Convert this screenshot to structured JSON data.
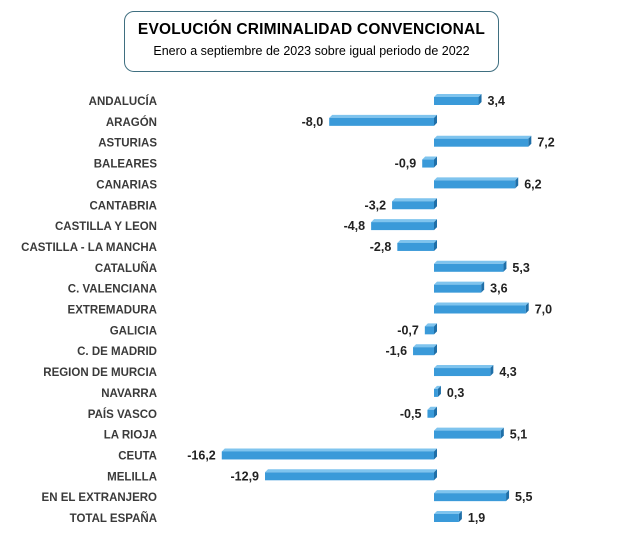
{
  "chart_data": {
    "type": "bar",
    "orientation": "horizontal",
    "title": "EVOLUCIÓN CRIMINALIDAD CONVENCIONAL",
    "subtitle": "Enero a septiembre de 2023 sobre igual periodo de 2022",
    "categories": [
      "ANDALUCÍA",
      "ARAGÓN",
      "ASTURIAS",
      "BALEARES",
      "CANARIAS",
      "CANTABRIA",
      "CASTILLA Y LEON",
      "CASTILLA - LA MANCHA",
      "CATALUÑA",
      "C. VALENCIANA",
      "EXTREMADURA",
      "GALICIA",
      "C. DE MADRID",
      "REGION DE MURCIA",
      "NAVARRA",
      "PAÍS VASCO",
      "LA RIOJA",
      "CEUTA",
      "MELILLA",
      "EN EL EXTRANJERO",
      "TOTAL ESPAÑA"
    ],
    "values": [
      3.4,
      -8.0,
      7.2,
      -0.9,
      6.2,
      -3.2,
      -4.8,
      -2.8,
      5.3,
      3.6,
      7.0,
      -0.7,
      -1.6,
      4.3,
      0.3,
      -0.5,
      5.1,
      -16.2,
      -12.9,
      5.5,
      1.9
    ],
    "value_labels": [
      "3,4",
      "-8,0",
      "7,2",
      "-0,9",
      "6,2",
      "-3,2",
      "-4,8",
      "-2,8",
      "5,3",
      "3,6",
      "7,0",
      "-0,7",
      "-1,6",
      "4,3",
      "0,3",
      "-0,5",
      "5,1",
      "-16,2",
      "-12,9",
      "5,5",
      "1,9"
    ],
    "xlim": [
      -16.2,
      7.2
    ],
    "grid": false,
    "legend": "none",
    "colors": {
      "bar": "#3a9ad9",
      "bar_top": "#7fc4ee",
      "bar_side": "#1f6fa8"
    }
  }
}
